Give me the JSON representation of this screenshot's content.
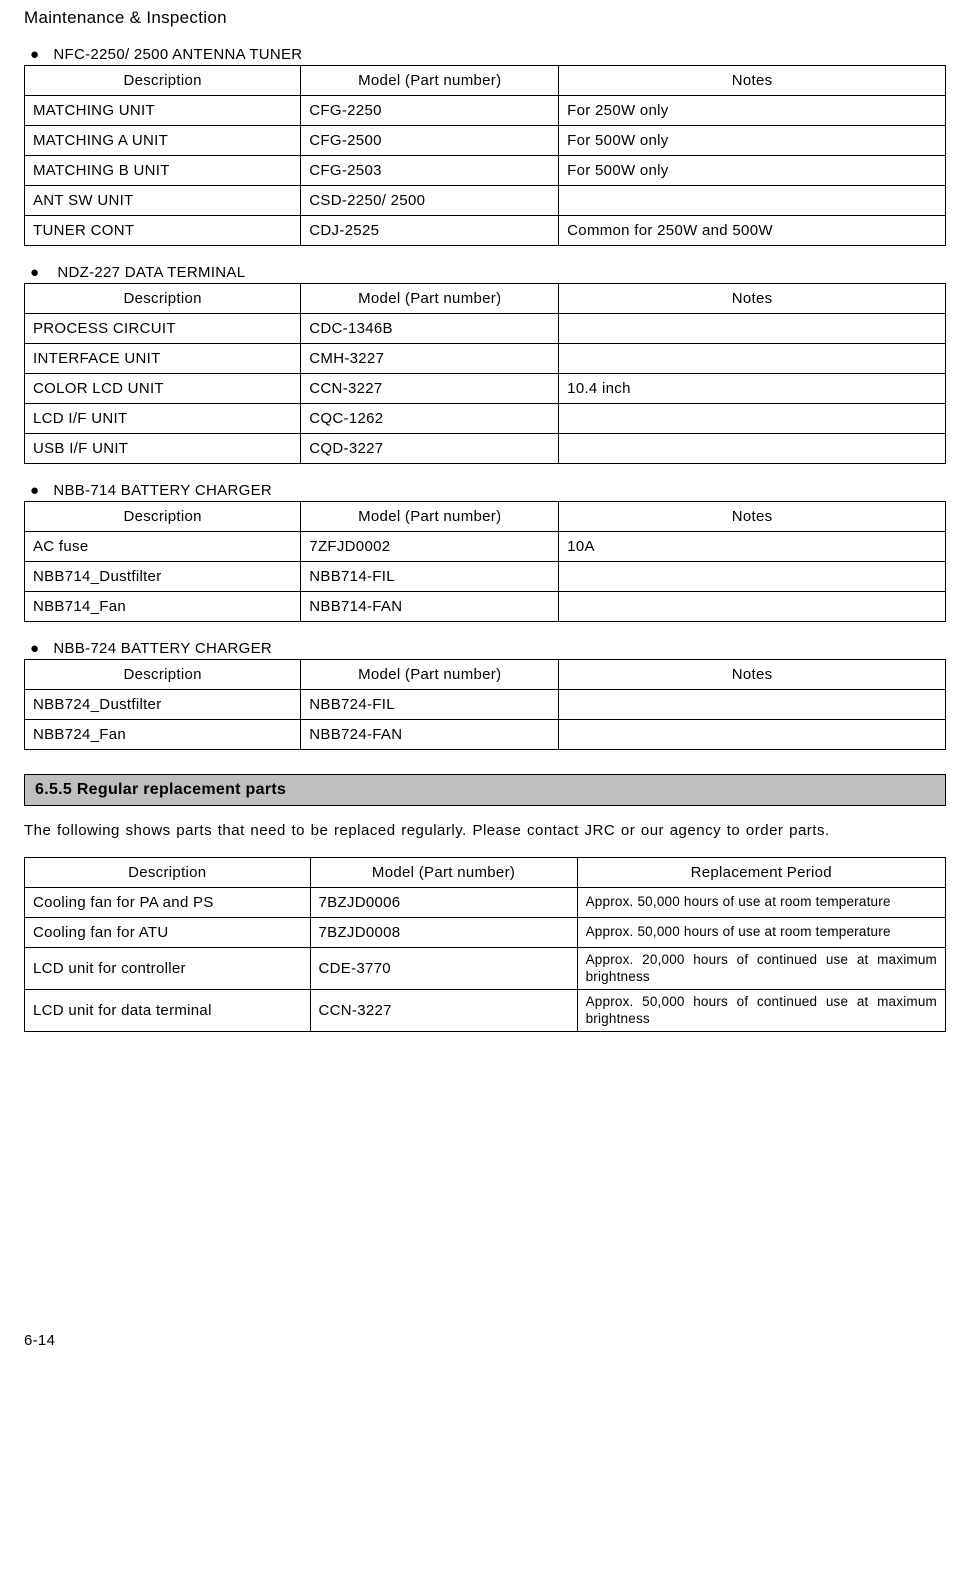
{
  "header": "Maintenance & Inspection",
  "table1": {
    "title": "NFC-2250/ 2500    ANTENNA TUNER",
    "columns": [
      "Description",
      "Model (Part number)",
      "Notes"
    ],
    "rows": [
      [
        "MATCHING UNIT",
        "CFG-2250",
        "For 250W only"
      ],
      [
        "MATCHING A UNIT",
        "CFG-2500",
        "For 500W only"
      ],
      [
        "MATCHING B UNIT",
        "CFG-2503",
        "For 500W only"
      ],
      [
        "ANT SW UNIT",
        "CSD-2250/ 2500",
        ""
      ],
      [
        "TUNER CONT",
        "CDJ-2525",
        "Common for 250W and 500W"
      ]
    ]
  },
  "table2": {
    "title": "NDZ-227 DATA TERMINAL",
    "columns": [
      "Description",
      "Model (Part number)",
      "Notes"
    ],
    "rows": [
      [
        "PROCESS CIRCUIT",
        "CDC-1346B",
        ""
      ],
      [
        "INTERFACE UNIT",
        "CMH-3227",
        ""
      ],
      [
        "COLOR LCD UNIT",
        "CCN-3227",
        "10.4 inch"
      ],
      [
        "LCD I/F UNIT",
        "CQC-1262",
        ""
      ],
      [
        "USB I/F UNIT",
        "CQD-3227",
        ""
      ]
    ]
  },
  "table3": {
    "title": "NBB-714 BATTERY CHARGER",
    "columns": [
      "Description",
      "Model (Part number)",
      "Notes"
    ],
    "rows": [
      [
        "AC fuse",
        "7ZFJD0002",
        "10A"
      ],
      [
        "NBB714_Dustfilter",
        "NBB714-FIL",
        ""
      ],
      [
        "NBB714_Fan",
        "NBB714-FAN",
        ""
      ]
    ]
  },
  "table4": {
    "title": "NBB-724 BATTERY CHARGER",
    "columns": [
      "Description",
      "Model (Part number)",
      "Notes"
    ],
    "rows": [
      [
        "NBB724_Dustfilter",
        "NBB724-FIL",
        ""
      ],
      [
        "NBB724_Fan",
        "NBB724-FAN",
        ""
      ]
    ]
  },
  "section655": {
    "heading": "6.5.5    Regular replacement parts",
    "text": "The following shows parts that need to be replaced regularly. Please contact JRC or our agency to order parts."
  },
  "table5": {
    "columns": [
      "Description",
      "Model (Part number)",
      "Replacement Period"
    ],
    "rows": [
      [
        "Cooling fan for PA and PS",
        "7BZJD0006",
        "Approx. 50,000 hours of use at room temperature"
      ],
      [
        "Cooling fan for ATU",
        "7BZJD0008",
        "Approx. 50,000 hours of use at room temperature"
      ],
      [
        "LCD unit for controller",
        "CDE-3770",
        "Approx. 20,000 hours of continued use at maximum brightness"
      ],
      [
        "LCD unit for data terminal",
        "CCN-3227",
        "Approx. 50,000 hours of continued use at maximum brightness"
      ]
    ]
  },
  "pageNumber": "6-14"
}
